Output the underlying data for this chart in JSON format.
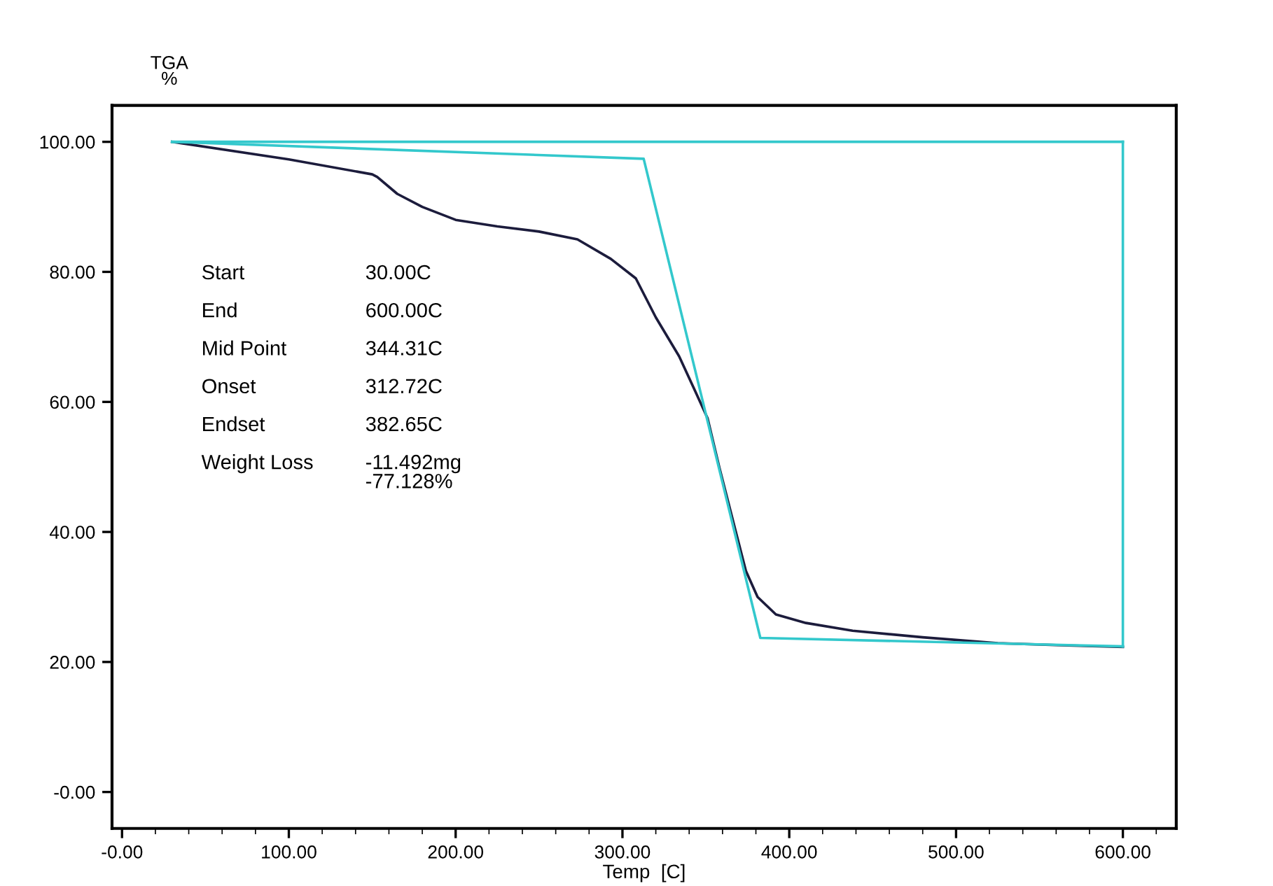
{
  "chart_data": {
    "type": "line",
    "xlabel": "Temp  [C]",
    "ylabel": "TGA\n%",
    "xlim": [
      -6,
      632
    ],
    "ylim": [
      -5.6,
      105.6
    ],
    "xticks": [
      {
        "value": 0,
        "label": "-0.00"
      },
      {
        "value": 100,
        "label": "100.00"
      },
      {
        "value": 200,
        "label": "200.00"
      },
      {
        "value": 300,
        "label": "300.00"
      },
      {
        "value": 400,
        "label": "400.00"
      },
      {
        "value": 500,
        "label": "500.00"
      },
      {
        "value": 600,
        "label": "600.00"
      }
    ],
    "yticks": [
      {
        "value": 0,
        "label": "-0.00"
      },
      {
        "value": 20,
        "label": "20.00"
      },
      {
        "value": 40,
        "label": "40.00"
      },
      {
        "value": 60,
        "label": "60.00"
      },
      {
        "value": 80,
        "label": "80.00"
      },
      {
        "value": 100,
        "label": "100.00"
      }
    ],
    "grid": false,
    "legend": false,
    "marker": "none",
    "line_style": "solid",
    "series": [
      {
        "color": "#1c1c3c",
        "x": [
          30,
          100,
          150,
          153,
          165,
          180,
          200,
          225,
          250,
          273,
          293,
          308,
          320,
          334,
          343,
          351,
          358,
          366,
          374,
          381,
          392,
          410,
          438,
          480,
          525,
          560,
          600
        ],
        "values": [
          100,
          97.3,
          95,
          94.6,
          92,
          90,
          88,
          87,
          86.2,
          85,
          82,
          79,
          73,
          67,
          62,
          57.5,
          50,
          42,
          34,
          30,
          27.3,
          26,
          24.8,
          23.8,
          22.9,
          22.6,
          22.3
        ]
      },
      {
        "color": "#33c8cc",
        "x": [
          30,
          312.72,
          382.65,
          600
        ],
        "values": [
          100,
          97.4,
          23.7,
          22.4
        ]
      },
      {
        "color": "#33c8cc",
        "x": [
          30,
          600
        ],
        "values": [
          100,
          100
        ]
      },
      {
        "color": "#33c8cc",
        "x": [
          600,
          600
        ],
        "values": [
          22.4,
          100
        ]
      }
    ],
    "annotations": [
      "Start",
      "30.00C",
      "End",
      "600.00C",
      "Mid Point",
      "344.31C",
      "Onset",
      "312.72C",
      "Endset",
      "382.65C",
      "Weight Loss",
      "-11.492mg\n-77.128%"
    ]
  }
}
